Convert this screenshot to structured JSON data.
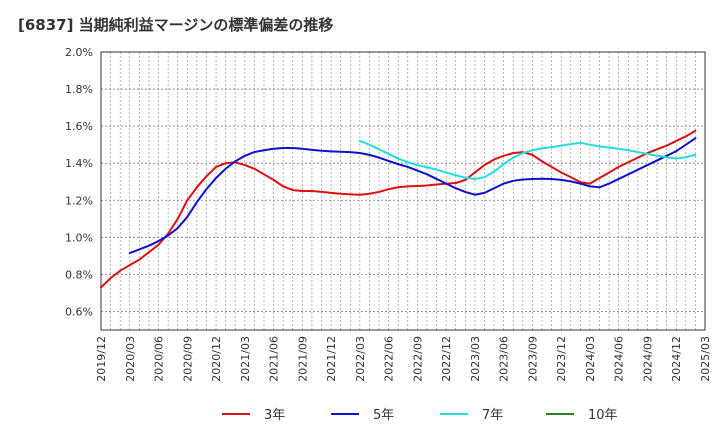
{
  "chart_data": {
    "type": "line",
    "title": "[6837]  当期純利益マージンの標準偏差の推移",
    "xlabel": "",
    "ylabel": "",
    "ylim": [
      0.5,
      2.0
    ],
    "y_ticks": [
      "2.0%",
      "1.8%",
      "1.6%",
      "1.4%",
      "1.2%",
      "1.0%",
      "0.8%",
      "0.6%"
    ],
    "y_tick_values": [
      2.0,
      1.8,
      1.6,
      1.4,
      1.2,
      1.0,
      0.8,
      0.6
    ],
    "x_ticks": [
      "2019/12",
      "2020/03",
      "2020/06",
      "2020/09",
      "2020/12",
      "2021/03",
      "2021/06",
      "2021/09",
      "2021/12",
      "2022/03",
      "2022/06",
      "2022/09",
      "2022/12",
      "2023/03",
      "2023/06",
      "2023/09",
      "2023/12",
      "2024/03",
      "2024/06",
      "2024/09",
      "2024/12",
      "2025/03"
    ],
    "grid": true,
    "legend_position": "bottom",
    "series": [
      {
        "name": "3年",
        "color": "#dd1111",
        "points": [
          [
            "2019/12",
            0.73
          ],
          [
            "2020/01",
            0.78
          ],
          [
            "2020/02",
            0.82
          ],
          [
            "2020/03",
            0.85
          ],
          [
            "2020/04",
            0.88
          ],
          [
            "2020/05",
            0.92
          ],
          [
            "2020/06",
            0.96
          ],
          [
            "2020/07",
            1.02
          ],
          [
            "2020/08",
            1.1
          ],
          [
            "2020/09",
            1.2
          ],
          [
            "2020/10",
            1.27
          ],
          [
            "2020/11",
            1.33
          ],
          [
            "2020/12",
            1.38
          ],
          [
            "2021/01",
            1.4
          ],
          [
            "2021/02",
            1.405
          ],
          [
            "2021/03",
            1.39
          ],
          [
            "2021/04",
            1.37
          ],
          [
            "2021/05",
            1.34
          ],
          [
            "2021/06",
            1.31
          ],
          [
            "2021/07",
            1.275
          ],
          [
            "2021/08",
            1.255
          ],
          [
            "2021/09",
            1.25
          ],
          [
            "2021/10",
            1.25
          ],
          [
            "2021/11",
            1.245
          ],
          [
            "2021/12",
            1.24
          ],
          [
            "2022/01",
            1.235
          ],
          [
            "2022/02",
            1.232
          ],
          [
            "2022/03",
            1.23
          ],
          [
            "2022/04",
            1.235
          ],
          [
            "2022/05",
            1.245
          ],
          [
            "2022/06",
            1.26
          ],
          [
            "2022/07",
            1.27
          ],
          [
            "2022/08",
            1.275
          ],
          [
            "2022/09",
            1.277
          ],
          [
            "2022/10",
            1.28
          ],
          [
            "2022/11",
            1.285
          ],
          [
            "2022/12",
            1.29
          ],
          [
            "2023/01",
            1.293
          ],
          [
            "2023/02",
            1.31
          ],
          [
            "2023/03",
            1.35
          ],
          [
            "2023/04",
            1.39
          ],
          [
            "2023/05",
            1.42
          ],
          [
            "2023/06",
            1.44
          ],
          [
            "2023/07",
            1.455
          ],
          [
            "2023/08",
            1.46
          ],
          [
            "2023/09",
            1.445
          ],
          [
            "2023/10",
            1.41
          ],
          [
            "2023/11",
            1.38
          ],
          [
            "2023/12",
            1.35
          ],
          [
            "2024/01",
            1.325
          ],
          [
            "2024/02",
            1.297
          ],
          [
            "2024/03",
            1.29
          ],
          [
            "2024/04",
            1.32
          ],
          [
            "2024/05",
            1.35
          ],
          [
            "2024/06",
            1.38
          ],
          [
            "2024/07",
            1.405
          ],
          [
            "2024/08",
            1.43
          ],
          [
            "2024/09",
            1.455
          ],
          [
            "2024/10",
            1.475
          ],
          [
            "2024/11",
            1.495
          ],
          [
            "2024/12",
            1.52
          ],
          [
            "2025/01",
            1.545
          ],
          [
            "2025/02",
            1.575
          ]
        ]
      },
      {
        "name": "5年",
        "color": "#1111cc",
        "points": [
          [
            "2020/03",
            0.915
          ],
          [
            "2020/04",
            0.935
          ],
          [
            "2020/05",
            0.955
          ],
          [
            "2020/06",
            0.98
          ],
          [
            "2020/07",
            1.01
          ],
          [
            "2020/08",
            1.05
          ],
          [
            "2020/09",
            1.11
          ],
          [
            "2020/10",
            1.19
          ],
          [
            "2020/11",
            1.26
          ],
          [
            "2020/12",
            1.32
          ],
          [
            "2021/01",
            1.37
          ],
          [
            "2021/02",
            1.41
          ],
          [
            "2021/03",
            1.44
          ],
          [
            "2021/04",
            1.46
          ],
          [
            "2021/05",
            1.47
          ],
          [
            "2021/06",
            1.478
          ],
          [
            "2021/07",
            1.482
          ],
          [
            "2021/08",
            1.482
          ],
          [
            "2021/09",
            1.478
          ],
          [
            "2021/10",
            1.472
          ],
          [
            "2021/11",
            1.467
          ],
          [
            "2021/12",
            1.464
          ],
          [
            "2022/01",
            1.462
          ],
          [
            "2022/02",
            1.46
          ],
          [
            "2022/03",
            1.455
          ],
          [
            "2022/04",
            1.445
          ],
          [
            "2022/05",
            1.43
          ],
          [
            "2022/06",
            1.412
          ],
          [
            "2022/07",
            1.395
          ],
          [
            "2022/08",
            1.38
          ],
          [
            "2022/09",
            1.36
          ],
          [
            "2022/10",
            1.34
          ],
          [
            "2022/11",
            1.315
          ],
          [
            "2022/12",
            1.29
          ],
          [
            "2023/01",
            1.265
          ],
          [
            "2023/02",
            1.245
          ],
          [
            "2023/03",
            1.23
          ],
          [
            "2023/04",
            1.24
          ],
          [
            "2023/05",
            1.265
          ],
          [
            "2023/06",
            1.29
          ],
          [
            "2023/07",
            1.305
          ],
          [
            "2023/08",
            1.312
          ],
          [
            "2023/09",
            1.315
          ],
          [
            "2023/10",
            1.316
          ],
          [
            "2023/11",
            1.315
          ],
          [
            "2023/12",
            1.31
          ],
          [
            "2024/01",
            1.302
          ],
          [
            "2024/02",
            1.29
          ],
          [
            "2024/03",
            1.275
          ],
          [
            "2024/04",
            1.27
          ],
          [
            "2024/05",
            1.29
          ],
          [
            "2024/06",
            1.315
          ],
          [
            "2024/07",
            1.34
          ],
          [
            "2024/08",
            1.365
          ],
          [
            "2024/09",
            1.39
          ],
          [
            "2024/10",
            1.415
          ],
          [
            "2024/11",
            1.44
          ],
          [
            "2024/12",
            1.465
          ],
          [
            "2025/01",
            1.5
          ],
          [
            "2025/02",
            1.535
          ]
        ]
      },
      {
        "name": "7年",
        "color": "#22dddd",
        "points": [
          [
            "2022/03",
            1.52
          ],
          [
            "2022/04",
            1.5
          ],
          [
            "2022/05",
            1.475
          ],
          [
            "2022/06",
            1.45
          ],
          [
            "2022/07",
            1.425
          ],
          [
            "2022/08",
            1.405
          ],
          [
            "2022/09",
            1.39
          ],
          [
            "2022/10",
            1.378
          ],
          [
            "2022/11",
            1.365
          ],
          [
            "2022/12",
            1.35
          ],
          [
            "2023/01",
            1.335
          ],
          [
            "2023/02",
            1.322
          ],
          [
            "2023/03",
            1.315
          ],
          [
            "2023/04",
            1.325
          ],
          [
            "2023/05",
            1.355
          ],
          [
            "2023/06",
            1.395
          ],
          [
            "2023/07",
            1.43
          ],
          [
            "2023/08",
            1.455
          ],
          [
            "2023/09",
            1.47
          ],
          [
            "2023/10",
            1.48
          ],
          [
            "2023/11",
            1.487
          ],
          [
            "2023/12",
            1.495
          ],
          [
            "2024/01",
            1.503
          ],
          [
            "2024/02",
            1.51
          ],
          [
            "2024/03",
            1.5
          ],
          [
            "2024/04",
            1.49
          ],
          [
            "2024/05",
            1.485
          ],
          [
            "2024/06",
            1.478
          ],
          [
            "2024/07",
            1.47
          ],
          [
            "2024/08",
            1.46
          ],
          [
            "2024/09",
            1.45
          ],
          [
            "2024/10",
            1.44
          ],
          [
            "2024/11",
            1.432
          ],
          [
            "2024/12",
            1.425
          ],
          [
            "2025/01",
            1.432
          ],
          [
            "2025/02",
            1.445
          ]
        ]
      },
      {
        "name": "10年",
        "color": "#228822",
        "points": []
      }
    ]
  }
}
